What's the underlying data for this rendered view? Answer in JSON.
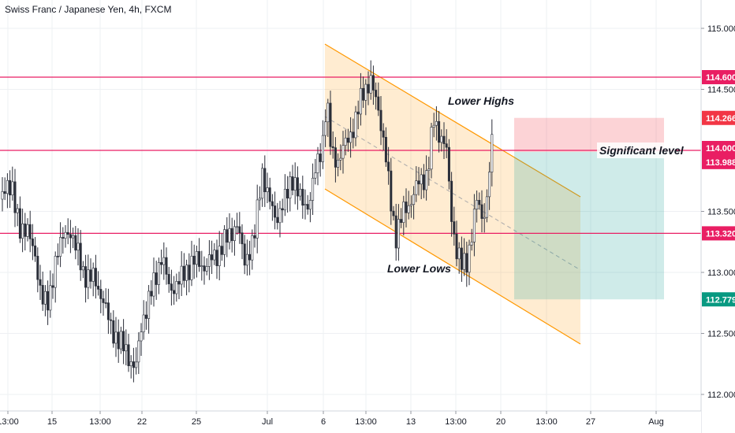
{
  "chart_data": {
    "type": "candlestick",
    "title": "Swiss Franc / Japanese Yen, 4h, FXCM",
    "y_ticks": [
      "115.000",
      "114.500",
      "113.500",
      "113.000",
      "112.500",
      "112.000"
    ],
    "x_ticks": [
      "13:00",
      "15",
      "13:00",
      "22",
      "25",
      "Jul",
      "6",
      "13:00",
      "13",
      "13:00",
      "20",
      "13:00",
      "27",
      "Aug"
    ],
    "price_badges": [
      {
        "label": "114.600",
        "value": 114.6,
        "color": "#e91e63"
      },
      {
        "label": "114.266",
        "value": 114.266,
        "color": "#f23645"
      },
      {
        "label": "114.000",
        "value": 114.0,
        "color": "#e91e63"
      },
      {
        "label": "113.988",
        "value": 113.988,
        "color": "#e91e63"
      },
      {
        "label": "113.320",
        "value": 113.32,
        "color": "#e91e63"
      },
      {
        "label": "112.779",
        "value": 112.779,
        "color": "#089981"
      }
    ],
    "horizontal_levels": [
      114.6,
      114.0,
      113.32
    ],
    "annotations": [
      "Lower Highs",
      "Significant level",
      "Lower Lows"
    ],
    "colors": {
      "up": "#26a69a",
      "down": "#ef5350",
      "candle": "#2a2e39",
      "level": "#e91e63",
      "channel": "#ff9800"
    }
  }
}
